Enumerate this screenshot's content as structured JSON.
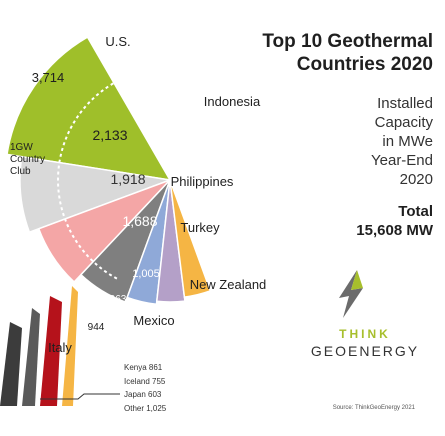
{
  "title_line1": "Top 10 Geothermal",
  "title_line2": "Countries 2020",
  "subtitle_lines": [
    "Installed",
    "Capacity",
    "in MWe",
    "Year-End",
    "2020"
  ],
  "total_label": "Total",
  "total_value": "15,608 MW",
  "brand_think": "THINK",
  "brand_geoenergy": "GEOENERGY",
  "source": "Source: ThinkGeoEnergy 2021",
  "badge_text": "1GW Country Club",
  "chart_data": {
    "type": "pie",
    "title": "Top 10 Geothermal Countries 2020",
    "subtitle": "Installed Capacity in MWe Year-End 2020",
    "unit": "MWe",
    "total": 15608,
    "total_label": "15,608 MW",
    "slices": [
      {
        "label": "U.S.",
        "value": 3714,
        "value_label": "3,714",
        "color": "#9fbf2a"
      },
      {
        "label": "Indonesia",
        "value": 2133,
        "value_label": "2,133",
        "color": "#d9d9d9"
      },
      {
        "label": "Philippines",
        "value": 1918,
        "value_label": "1,918",
        "color": "#f4a6a6"
      },
      {
        "label": "Turkey",
        "value": 1688,
        "value_label": "1,688",
        "color": "#7f7f7f"
      },
      {
        "label": "New Zealand",
        "value": 1005,
        "value_label": "1,005",
        "color": "#8fa9d8"
      },
      {
        "label": "Mexico",
        "value": 963,
        "value_label": "963",
        "color": "#b4a0c8"
      },
      {
        "label": "Italy",
        "value": 944,
        "value_label": "944",
        "color": "#f5b544"
      },
      {
        "label": "Kenya",
        "value": 861,
        "value_label": "Kenya 861",
        "color": "#b5121b"
      },
      {
        "label": "Iceland",
        "value": 755,
        "value_label": "Iceland 755",
        "color": "#5a5a5a"
      },
      {
        "label": "Japan",
        "value": 603,
        "value_label": "Japan 603",
        "color": "#8b6b3a"
      },
      {
        "label": "Other",
        "value": 1025,
        "value_label": "Other 1,025",
        "color": "#3c3c3c"
      }
    ],
    "highlight_group": {
      "label": "1GW Country Club",
      "members": [
        "U.S.",
        "Indonesia",
        "Philippines",
        "Turkey",
        "New Zealand"
      ]
    }
  }
}
